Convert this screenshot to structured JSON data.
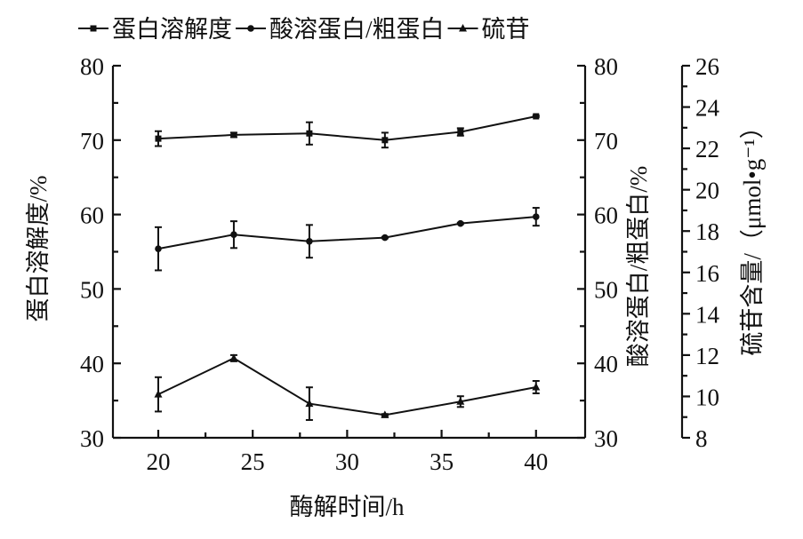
{
  "chart_data": {
    "type": "line",
    "title": "",
    "xlabel": "酶解时间/h",
    "x": [
      20,
      24,
      28,
      32,
      36,
      40
    ],
    "xlim": [
      17.6,
      42.6
    ],
    "xticks": [
      20,
      25,
      30,
      35,
      40
    ],
    "axes": [
      {
        "id": "left",
        "label": "蛋白溶解度/%",
        "lim": [
          30,
          80
        ],
        "ticks": [
          30,
          40,
          50,
          60,
          70,
          80
        ]
      },
      {
        "id": "right1",
        "label": "酸溶蛋白/粗蛋白/%",
        "lim": [
          30,
          80
        ],
        "ticks": [
          30,
          40,
          50,
          60,
          70,
          80
        ]
      },
      {
        "id": "right2",
        "label": "硫苷含量/（μmol•g⁻¹）",
        "lim": [
          8,
          26
        ],
        "ticks": [
          8,
          10,
          12,
          14,
          16,
          18,
          20,
          22,
          24,
          26
        ]
      }
    ],
    "series": [
      {
        "name": "蛋白溶解度",
        "axis": "left",
        "marker": "square",
        "values": [
          70.2,
          70.7,
          70.9,
          70.0,
          71.1,
          73.2
        ],
        "errors": [
          1.0,
          0.3,
          1.5,
          1.0,
          0.5,
          0.1
        ]
      },
      {
        "name": "酸溶蛋白/粗蛋白",
        "axis": "right1",
        "marker": "circle",
        "values": [
          55.4,
          57.3,
          56.4,
          56.9,
          58.8,
          59.7
        ],
        "errors": [
          2.9,
          1.8,
          2.2,
          0.1,
          0.1,
          1.2
        ]
      },
      {
        "name": "硫苷",
        "axis": "right2",
        "marker": "triangle",
        "values": [
          10.1,
          11.85,
          9.65,
          9.1,
          9.75,
          10.45
        ],
        "errors": [
          0.83,
          0.15,
          0.79,
          0.05,
          0.26,
          0.3
        ]
      }
    ],
    "legend": "top",
    "grid": false
  }
}
